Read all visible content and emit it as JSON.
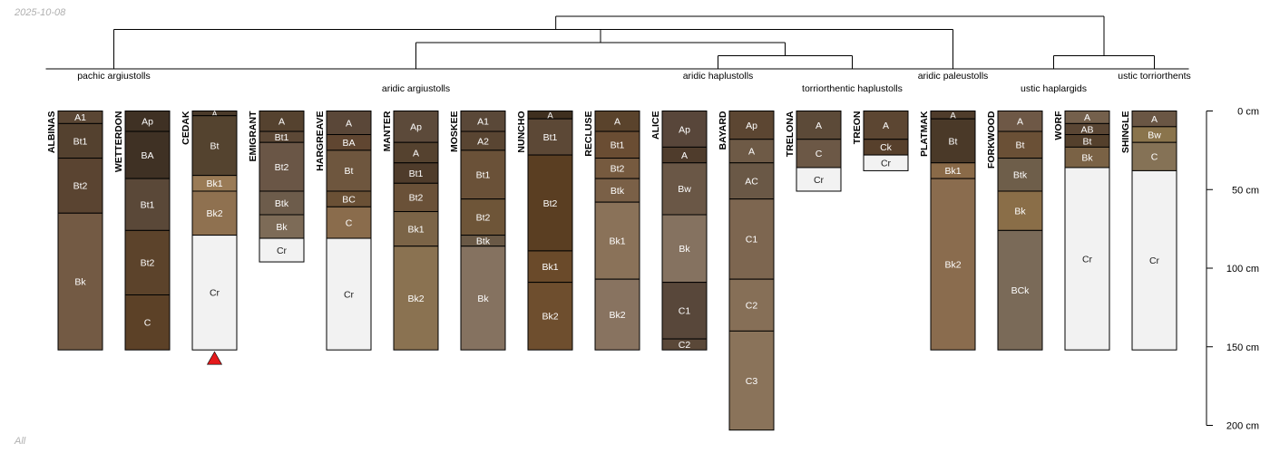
{
  "corner": {
    "date": "2025-10-08",
    "group": "All"
  },
  "colors": {
    "line": "#000000",
    "text_light": "#ffffff",
    "text_dark": "#222222",
    "marker": "#e41a1c"
  },
  "chart_data": {
    "type": "soil-profile-sketch",
    "depth_axis": {
      "unit": "cm",
      "ticks": [
        {
          "depth": 0,
          "label": "0 cm"
        },
        {
          "depth": 50,
          "label": "50 cm"
        },
        {
          "depth": 100,
          "label": "100 cm"
        },
        {
          "depth": 150,
          "label": "150 cm"
        },
        {
          "depth": 200,
          "label": "200 cm"
        }
      ]
    },
    "taxa": [
      {
        "id": "pachic",
        "label": "pachic argiustolls",
        "members": [
          0,
          1
        ]
      },
      {
        "id": "aridic_arg",
        "label": "aridic argiustolls",
        "members": [
          2,
          3,
          4,
          5,
          6,
          7,
          8
        ]
      },
      {
        "id": "aridic_hap",
        "label": "aridic haplustolls",
        "members": [
          9,
          10
        ]
      },
      {
        "id": "torri_hap",
        "label": "torriorthentic haplustolls",
        "members": [
          11,
          12
        ]
      },
      {
        "id": "aridic_pal",
        "label": "aridic paleustolls",
        "members": [
          13
        ]
      },
      {
        "id": "ustic_hap",
        "label": "ustic haplargids",
        "members": [
          14,
          15
        ]
      },
      {
        "id": "ustic_tor",
        "label": "ustic torriorthents",
        "members": [
          16
        ]
      }
    ],
    "dendrogram": {
      "children": [
        {
          "children": [
            {
              "taxon": "pachic"
            },
            {
              "children": [
                {
                  "taxon": "aridic_arg"
                },
                {
                  "children": [
                    {
                      "taxon": "aridic_hap"
                    },
                    {
                      "taxon": "torri_hap"
                    }
                  ]
                }
              ]
            },
            {
              "taxon": "aridic_pal"
            }
          ]
        },
        {
          "children": [
            {
              "taxon": "ustic_hap"
            },
            {
              "taxon": "ustic_tor"
            }
          ]
        }
      ]
    },
    "profiles": [
      {
        "name": "ALBINAS",
        "horizons": [
          {
            "name": "A1",
            "top": 0,
            "bottom": 8,
            "color": "#5a4634"
          },
          {
            "name": "Bt1",
            "top": 8,
            "bottom": 30,
            "color": "#54412f"
          },
          {
            "name": "Bt2",
            "top": 30,
            "bottom": 65,
            "color": "#5a4431"
          },
          {
            "name": "Bk",
            "top": 65,
            "bottom": 152,
            "color": "#735a44"
          }
        ]
      },
      {
        "name": "WETTERDON",
        "horizons": [
          {
            "name": "Ap",
            "top": 0,
            "bottom": 13,
            "color": "#3f3124"
          },
          {
            "name": "BA",
            "top": 13,
            "bottom": 43,
            "color": "#3f3124"
          },
          {
            "name": "Bt1",
            "top": 43,
            "bottom": 76,
            "color": "#5a4838"
          },
          {
            "name": "Bt2",
            "top": 76,
            "bottom": 117,
            "color": "#5c432b"
          },
          {
            "name": "C",
            "top": 117,
            "bottom": 152,
            "color": "#5c4127"
          }
        ]
      },
      {
        "name": "CEDAK",
        "marker": true,
        "horizons": [
          {
            "name": "A",
            "top": 0,
            "bottom": 3,
            "color": "#4a3a2a"
          },
          {
            "name": "Bt",
            "top": 3,
            "bottom": 41,
            "color": "#54432f"
          },
          {
            "name": "Bk1",
            "top": 41,
            "bottom": 51,
            "color": "#9a7b56"
          },
          {
            "name": "Bk2",
            "top": 51,
            "bottom": 79,
            "color": "#8f7150"
          },
          {
            "name": "Cr",
            "top": 79,
            "bottom": 152,
            "color": "#f2f2f2"
          }
        ]
      },
      {
        "name": "EMIGRANT",
        "horizons": [
          {
            "name": "A",
            "top": 0,
            "bottom": 13,
            "color": "#55422f"
          },
          {
            "name": "Bt1",
            "top": 13,
            "bottom": 20,
            "color": "#5c4836"
          },
          {
            "name": "Bt2",
            "top": 20,
            "bottom": 51,
            "color": "#6a5646"
          },
          {
            "name": "Btk",
            "top": 51,
            "bottom": 66,
            "color": "#6d5c4b"
          },
          {
            "name": "Bk",
            "top": 66,
            "bottom": 81,
            "color": "#7d6b57"
          },
          {
            "name": "Cr",
            "top": 81,
            "bottom": 96,
            "color": "#f2f2f2"
          }
        ]
      },
      {
        "name": "HARGREAVE",
        "horizons": [
          {
            "name": "A",
            "top": 0,
            "bottom": 15,
            "color": "#5a4738"
          },
          {
            "name": "BA",
            "top": 15,
            "bottom": 25,
            "color": "#604631"
          },
          {
            "name": "Bt",
            "top": 25,
            "bottom": 51,
            "color": "#6e563e"
          },
          {
            "name": "BC",
            "top": 51,
            "bottom": 61,
            "color": "#6a5035"
          },
          {
            "name": "C",
            "top": 61,
            "bottom": 81,
            "color": "#8a6c4c"
          },
          {
            "name": "Cr",
            "top": 81,
            "bottom": 152,
            "color": "#f2f2f2"
          }
        ]
      },
      {
        "name": "MANTER",
        "horizons": [
          {
            "name": "Ap",
            "top": 0,
            "bottom": 20,
            "color": "#5c4a3a"
          },
          {
            "name": "A",
            "top": 20,
            "bottom": 33,
            "color": "#55422f"
          },
          {
            "name": "Bt1",
            "top": 33,
            "bottom": 46,
            "color": "#4f3c2b"
          },
          {
            "name": "Bt2",
            "top": 46,
            "bottom": 64,
            "color": "#6a5138"
          },
          {
            "name": "Bk1",
            "top": 64,
            "bottom": 86,
            "color": "#7b6447"
          },
          {
            "name": "Bk2",
            "top": 86,
            "bottom": 152,
            "color": "#8a7251"
          }
        ]
      },
      {
        "name": "MOSKEE",
        "horizons": [
          {
            "name": "A1",
            "top": 0,
            "bottom": 13,
            "color": "#5a4838"
          },
          {
            "name": "A2",
            "top": 13,
            "bottom": 25,
            "color": "#594532"
          },
          {
            "name": "Bt1",
            "top": 25,
            "bottom": 56,
            "color": "#6a5138"
          },
          {
            "name": "Bt2",
            "top": 56,
            "bottom": 79,
            "color": "#6e5538"
          },
          {
            "name": "Btk",
            "top": 79,
            "bottom": 86,
            "color": "#6a5946"
          },
          {
            "name": "Bk",
            "top": 86,
            "bottom": 152,
            "color": "#857260"
          }
        ]
      },
      {
        "name": "NUNCHO",
        "horizons": [
          {
            "name": "A",
            "top": 0,
            "bottom": 5,
            "color": "#3f2f1f"
          },
          {
            "name": "Bt1",
            "top": 5,
            "bottom": 28,
            "color": "#5c4836"
          },
          {
            "name": "Bt2",
            "top": 28,
            "bottom": 89,
            "color": "#5a3e22"
          },
          {
            "name": "Bk1",
            "top": 89,
            "bottom": 109,
            "color": "#6a4a2a"
          },
          {
            "name": "Bk2",
            "top": 109,
            "bottom": 152,
            "color": "#6e4e2e"
          }
        ]
      },
      {
        "name": "RECLUSE",
        "horizons": [
          {
            "name": "A",
            "top": 0,
            "bottom": 13,
            "color": "#5a432c"
          },
          {
            "name": "Bt1",
            "top": 13,
            "bottom": 30,
            "color": "#6a4d33"
          },
          {
            "name": "Bt2",
            "top": 30,
            "bottom": 43,
            "color": "#765a3f"
          },
          {
            "name": "Btk",
            "top": 43,
            "bottom": 58,
            "color": "#7a6047"
          },
          {
            "name": "Bk1",
            "top": 58,
            "bottom": 107,
            "color": "#8a7259"
          },
          {
            "name": "Bk2",
            "top": 107,
            "bottom": 152,
            "color": "#887360"
          }
        ]
      },
      {
        "name": "ALICE",
        "horizons": [
          {
            "name": "Ap",
            "top": 0,
            "bottom": 23,
            "color": "#58463a"
          },
          {
            "name": "A",
            "top": 23,
            "bottom": 33,
            "color": "#4f3c2c"
          },
          {
            "name": "Bw",
            "top": 33,
            "bottom": 66,
            "color": "#6a5746"
          },
          {
            "name": "Bk",
            "top": 66,
            "bottom": 109,
            "color": "#857260"
          },
          {
            "name": "C1",
            "top": 109,
            "bottom": 145,
            "color": "#58473a"
          },
          {
            "name": "C2",
            "top": 145,
            "bottom": 152,
            "color": "#5a4838"
          }
        ]
      },
      {
        "name": "BAYARD",
        "horizons": [
          {
            "name": "Ap",
            "top": 0,
            "bottom": 18,
            "color": "#5c4632"
          },
          {
            "name": "A",
            "top": 18,
            "bottom": 33,
            "color": "#6e5a46"
          },
          {
            "name": "AC",
            "top": 33,
            "bottom": 56,
            "color": "#6a5846"
          },
          {
            "name": "C1",
            "top": 56,
            "bottom": 107,
            "color": "#7d6650"
          },
          {
            "name": "C2",
            "top": 107,
            "bottom": 140,
            "color": "#866f57"
          },
          {
            "name": "C3",
            "top": 140,
            "bottom": 203,
            "color": "#8a735a"
          }
        ]
      },
      {
        "name": "TRELONA",
        "horizons": [
          {
            "name": "A",
            "top": 0,
            "bottom": 18,
            "color": "#5c4a38"
          },
          {
            "name": "C",
            "top": 18,
            "bottom": 36,
            "color": "#6c5846"
          },
          {
            "name": "Cr",
            "top": 36,
            "bottom": 51,
            "color": "#f2f2f2"
          }
        ]
      },
      {
        "name": "TREON",
        "horizons": [
          {
            "name": "A",
            "top": 0,
            "bottom": 18,
            "color": "#5c4632"
          },
          {
            "name": "Ck",
            "top": 18,
            "bottom": 28,
            "color": "#57402c"
          },
          {
            "name": "Cr",
            "top": 28,
            "bottom": 38,
            "color": "#f2f2f2"
          }
        ]
      },
      {
        "name": "PLATMAK",
        "horizons": [
          {
            "name": "A",
            "top": 0,
            "bottom": 5,
            "color": "#4f3c2b"
          },
          {
            "name": "Bt",
            "top": 5,
            "bottom": 33,
            "color": "#4a3928"
          },
          {
            "name": "Bk1",
            "top": 33,
            "bottom": 43,
            "color": "#8a6a48"
          },
          {
            "name": "Bk2",
            "top": 43,
            "bottom": 152,
            "color": "#8a6c4e"
          }
        ]
      },
      {
        "name": "FORKWOOD",
        "horizons": [
          {
            "name": "A",
            "top": 0,
            "bottom": 13,
            "color": "#6e5846"
          },
          {
            "name": "Bt",
            "top": 13,
            "bottom": 30,
            "color": "#6a5036"
          },
          {
            "name": "Btk",
            "top": 30,
            "bottom": 51,
            "color": "#6e5e4a"
          },
          {
            "name": "Bk",
            "top": 51,
            "bottom": 76,
            "color": "#8a6e48"
          },
          {
            "name": "BCk",
            "top": 76,
            "bottom": 152,
            "color": "#7a6a58"
          }
        ]
      },
      {
        "name": "WORF",
        "horizons": [
          {
            "name": "A",
            "top": 0,
            "bottom": 8,
            "color": "#74604c"
          },
          {
            "name": "AB",
            "top": 8,
            "bottom": 15,
            "color": "#5a4634"
          },
          {
            "name": "Bt",
            "top": 15,
            "bottom": 23,
            "color": "#54402c"
          },
          {
            "name": "Bk",
            "top": 23,
            "bottom": 36,
            "color": "#7a6245"
          },
          {
            "name": "Cr",
            "top": 36,
            "bottom": 152,
            "color": "#f2f2f2"
          }
        ]
      },
      {
        "name": "SHINGLE",
        "horizons": [
          {
            "name": "A",
            "top": 0,
            "bottom": 10,
            "color": "#6a5644"
          },
          {
            "name": "Bw",
            "top": 10,
            "bottom": 20,
            "color": "#8a744c"
          },
          {
            "name": "C",
            "top": 20,
            "bottom": 38,
            "color": "#857256"
          },
          {
            "name": "Cr",
            "top": 38,
            "bottom": 152,
            "color": "#f2f2f2"
          }
        ]
      }
    ]
  }
}
